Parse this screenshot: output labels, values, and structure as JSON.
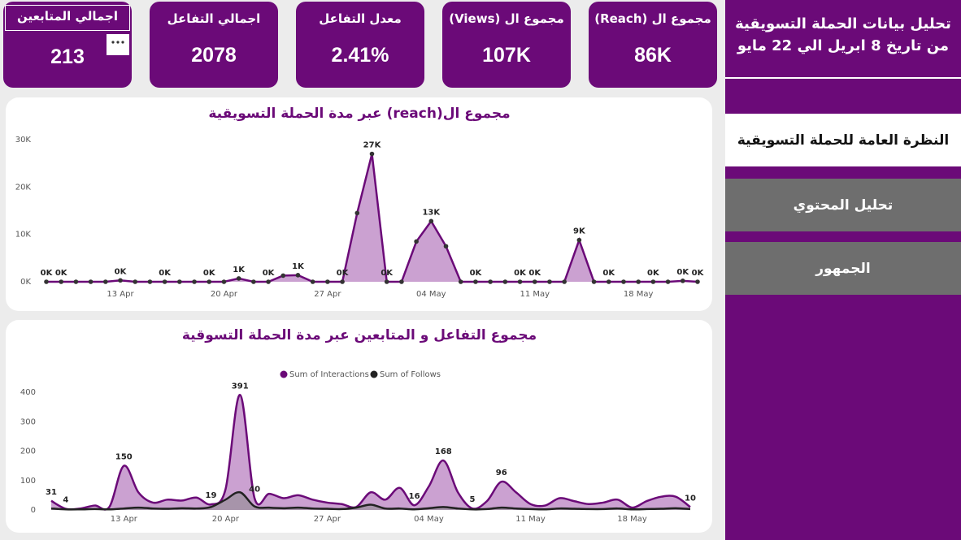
{
  "sidebar": {
    "title": "تحليل بيانات الحملة التسويقية من تاريخ 8 ابريل الي 22 مايو",
    "nav": [
      "النظرة العامة للحملة التسويقية",
      "تحليل المحتوي",
      "الجمهور"
    ]
  },
  "kpis": [
    {
      "label": "مجموع ال (Reach)",
      "value": "86K"
    },
    {
      "label": "مجموع ال (Views)",
      "value": "107K"
    },
    {
      "label": "معدل التفاعل",
      "value": "2.41%"
    },
    {
      "label": "اجمالي التفاعل",
      "value": "2078"
    },
    {
      "label": "اجمالي المتابعين",
      "value": "213"
    }
  ],
  "chart_data": [
    {
      "type": "area",
      "title": "مجموع ال(reach) عبر مدة الحملة التسويقية",
      "markers": true,
      "smooth": false,
      "categories": [
        null,
        null,
        null,
        null,
        null,
        "13 Apr",
        null,
        null,
        null,
        null,
        null,
        null,
        "20 Apr",
        null,
        null,
        null,
        null,
        null,
        null,
        "27 Apr",
        null,
        null,
        null,
        null,
        null,
        null,
        "04 May",
        null,
        null,
        null,
        null,
        null,
        null,
        "11 May",
        null,
        null,
        null,
        null,
        null,
        null,
        "18 May",
        null,
        null,
        null,
        null
      ],
      "series": [
        {
          "name": null,
          "color": "#6b0a78",
          "fill": "#c597cc",
          "values": [
            0,
            0,
            0,
            0,
            0,
            300,
            0,
            0,
            0,
            0,
            0,
            0,
            0,
            700,
            0,
            0,
            1300,
            1400,
            0,
            0,
            0,
            14500,
            27000,
            0,
            0,
            8500,
            12800,
            7500,
            0,
            0,
            0,
            0,
            0,
            0,
            0,
            0,
            8800,
            0,
            0,
            0,
            0,
            0,
            0,
            200,
            0
          ],
          "value_labels": [
            "0K",
            "0K",
            null,
            null,
            null,
            "0K",
            null,
            null,
            "0K",
            null,
            null,
            "0K",
            null,
            "1K",
            null,
            "0K",
            null,
            "1K",
            null,
            null,
            "0K",
            null,
            "27K",
            "0K",
            null,
            null,
            "13K",
            null,
            null,
            "0K",
            null,
            null,
            "0K",
            "0K",
            null,
            null,
            "9K",
            null,
            "0K",
            null,
            null,
            "0K",
            null,
            "0K",
            "0K"
          ]
        }
      ],
      "ylim": [
        0,
        30000
      ],
      "yticks": [
        {
          "value": 0,
          "label": "0K"
        },
        {
          "value": 10000,
          "label": "10K"
        },
        {
          "value": 20000,
          "label": "20K"
        },
        {
          "value": 30000,
          "label": "30K"
        }
      ]
    },
    {
      "type": "area",
      "title": "مجموع التفاعل و المتابعين عبر مدة الحملة التسوقية",
      "markers": false,
      "smooth": true,
      "legend": "top",
      "categories": [
        null,
        null,
        null,
        null,
        null,
        "13 Apr",
        null,
        null,
        null,
        null,
        null,
        null,
        "20 Apr",
        null,
        null,
        null,
        null,
        null,
        null,
        "27 Apr",
        null,
        null,
        null,
        null,
        null,
        null,
        "04 May",
        null,
        null,
        null,
        null,
        null,
        null,
        "11 May",
        null,
        null,
        null,
        null,
        null,
        null,
        "18 May",
        null,
        null,
        null,
        null
      ],
      "series": [
        {
          "name": "Sum of Interactions",
          "color": "#6b0a78",
          "fill": "#c597cc",
          "values": [
            31,
            4,
            5,
            15,
            10,
            150,
            60,
            25,
            35,
            32,
            42,
            19,
            70,
            391,
            40,
            55,
            40,
            50,
            35,
            25,
            20,
            10,
            60,
            35,
            75,
            16,
            80,
            168,
            60,
            5,
            30,
            96,
            60,
            20,
            15,
            40,
            30,
            20,
            25,
            35,
            8,
            30,
            45,
            45,
            10
          ],
          "value_labels": [
            "31",
            "4",
            null,
            null,
            null,
            "150",
            null,
            null,
            null,
            null,
            null,
            "19",
            null,
            "391",
            "40",
            null,
            null,
            null,
            null,
            null,
            null,
            null,
            null,
            null,
            null,
            "16",
            null,
            "168",
            null,
            "5",
            null,
            "96",
            null,
            null,
            null,
            null,
            null,
            null,
            null,
            null,
            null,
            null,
            null,
            null,
            "10"
          ]
        },
        {
          "name": "Sum of Follows",
          "color": "#222222",
          "fill": "#8a8a8a",
          "values": [
            5,
            2,
            2,
            3,
            2,
            5,
            8,
            5,
            4,
            6,
            5,
            10,
            35,
            60,
            12,
            8,
            6,
            8,
            5,
            4,
            3,
            8,
            18,
            5,
            5,
            2,
            6,
            10,
            5,
            2,
            3,
            8,
            5,
            3,
            2,
            5,
            4,
            3,
            3,
            5,
            2,
            3,
            4,
            6,
            3
          ]
        }
      ],
      "ylim": [
        0,
        400
      ],
      "yticks": [
        0,
        100,
        200,
        300,
        400
      ]
    }
  ]
}
